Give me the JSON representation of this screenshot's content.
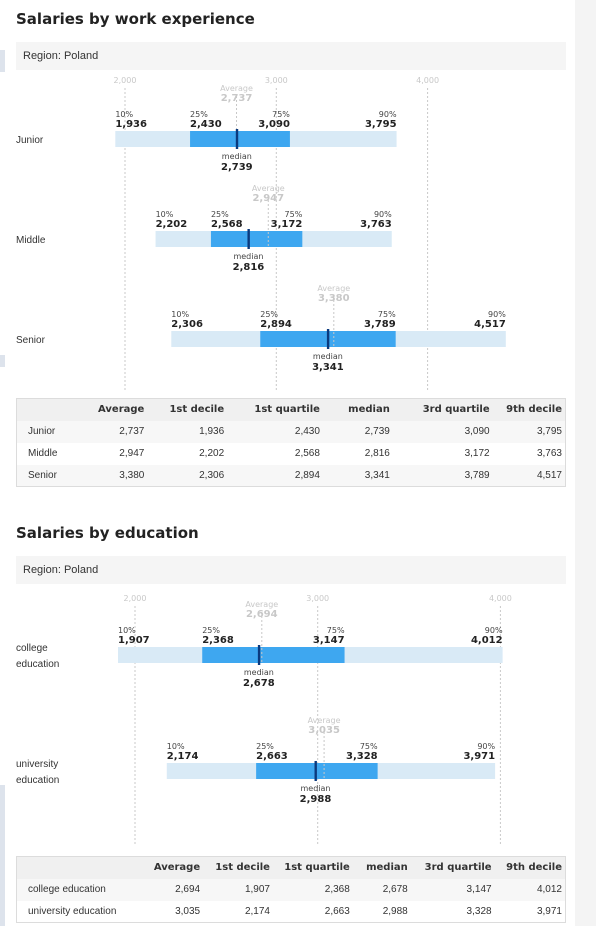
{
  "colors": {
    "range_bar": "#d9eaf6",
    "quartile_bar": "#3ea7f0",
    "median_line": "#0b3a7e",
    "average_text": "#c8c8c8",
    "axis_text": "#c8c8c8",
    "gridline": "#c8c8c8"
  },
  "experience": {
    "title": "Salaries by work experience",
    "region": "Region: Poland",
    "headers": [
      "",
      "Average",
      "1st decile",
      "1st quartile",
      "median",
      "3rd quartile",
      "9th decile"
    ],
    "rows": [
      {
        "label": "Junior",
        "cells": [
          "2,737",
          "1,936",
          "2,430",
          "2,739",
          "3,090",
          "3,795"
        ]
      },
      {
        "label": "Middle",
        "cells": [
          "2,947",
          "2,202",
          "2,568",
          "2,816",
          "3,172",
          "3,763"
        ]
      },
      {
        "label": "Senior",
        "cells": [
          "3,380",
          "2,306",
          "2,894",
          "3,341",
          "3,789",
          "4,517"
        ]
      }
    ]
  },
  "education": {
    "title": "Salaries by education",
    "region": "Region: Poland",
    "headers": [
      "",
      "Average",
      "1st decile",
      "1st quartile",
      "median",
      "3rd quartile",
      "9th decile"
    ],
    "rows": [
      {
        "label": "college education",
        "cells": [
          "2,694",
          "1,907",
          "2,368",
          "2,678",
          "3,147",
          "4,012"
        ]
      },
      {
        "label": "university education",
        "cells": [
          "3,035",
          "2,174",
          "2,663",
          "2,988",
          "3,328",
          "3,971"
        ]
      }
    ]
  },
  "chart_data": [
    {
      "type": "boxplot",
      "title": "Salaries by work experience",
      "subtitle": "Region: Poland",
      "xticks": [
        2000,
        3000,
        4000
      ],
      "xtick_labels": [
        "2,000",
        "3,000",
        "4,000"
      ],
      "point_labels": {
        "p10": "10%",
        "q1": "25%",
        "q3": "75%",
        "p90": "90%",
        "median": "median",
        "average": "Average"
      },
      "categories": [
        "Junior",
        "Middle",
        "Senior"
      ],
      "series": [
        {
          "label": "Junior",
          "label_lines": [
            "Junior"
          ],
          "p10": 1936,
          "q1": 2430,
          "median": 2739,
          "q3": 3090,
          "p90": 3795,
          "average": 2737
        },
        {
          "label": "Middle",
          "label_lines": [
            "Middle"
          ],
          "p10": 2202,
          "q1": 2568,
          "median": 2816,
          "q3": 3172,
          "p90": 3763,
          "average": 2947
        },
        {
          "label": "Senior",
          "label_lines": [
            "Senior"
          ],
          "p10": 2306,
          "q1": 2894,
          "median": 3341,
          "q3": 3789,
          "p90": 4517,
          "average": 3380
        }
      ]
    },
    {
      "type": "boxplot",
      "title": "Salaries by education",
      "subtitle": "Region: Poland",
      "xticks": [
        2000,
        3000,
        4000
      ],
      "xtick_labels": [
        "2,000",
        "3,000",
        "4,000"
      ],
      "point_labels": {
        "p10": "10%",
        "q1": "25%",
        "q3": "75%",
        "p90": "90%",
        "median": "median",
        "average": "Average"
      },
      "categories": [
        "college education",
        "university education"
      ],
      "series": [
        {
          "label": "college education",
          "label_lines": [
            "college",
            "education"
          ],
          "p10": 1907,
          "q1": 2368,
          "median": 2678,
          "q3": 3147,
          "p90": 4012,
          "average": 2694
        },
        {
          "label": "university education",
          "label_lines": [
            "university",
            "education"
          ],
          "p10": 2174,
          "q1": 2663,
          "median": 2988,
          "q3": 3328,
          "p90": 3971,
          "average": 3035
        }
      ]
    }
  ]
}
